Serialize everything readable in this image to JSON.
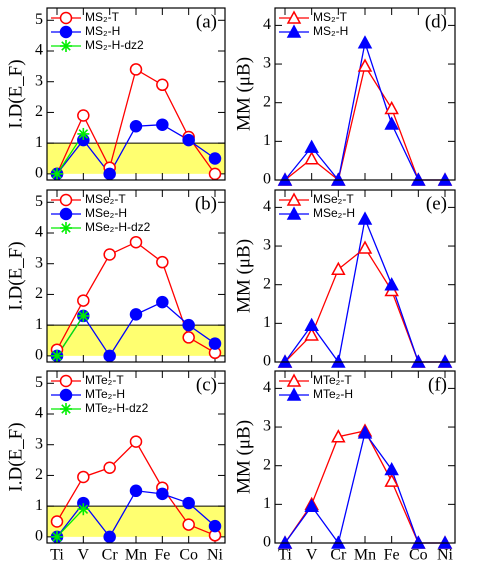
{
  "chart_data": [
    {
      "type": "line",
      "label": "(a)",
      "ylabel": "I.D(E_F)",
      "ylim": [
        -0.2,
        5.4
      ],
      "yticks": [
        0,
        1,
        2,
        3,
        4,
        5
      ],
      "band": [
        0,
        1
      ],
      "band_color": "#ffff70",
      "legend": "upper left",
      "series": [
        {
          "name": "MS₂-T",
          "color": "#ff0000",
          "marker": "open-circle",
          "values": [
            0,
            1.9,
            0.2,
            3.4,
            2.9,
            1.2,
            0
          ]
        },
        {
          "name": "MS₂-H",
          "color": "#0000ff",
          "marker": "filled-circle",
          "values": [
            0,
            1.1,
            0,
            1.55,
            1.6,
            1.1,
            0.5
          ]
        },
        {
          "name": "MS₂-H-dz2",
          "color": "#00ee00",
          "marker": "asterisk",
          "values": [
            0,
            1.3,
            null,
            null,
            null,
            null,
            null
          ]
        }
      ]
    },
    {
      "type": "line",
      "label": "(b)",
      "ylabel": "I.D(E_F)",
      "ylim": [
        -0.2,
        5.4
      ],
      "yticks": [
        0,
        1,
        2,
        3,
        4,
        5
      ],
      "band": [
        0,
        1
      ],
      "band_color": "#ffff70",
      "legend": "upper left",
      "series": [
        {
          "name": "MSe₂-T",
          "color": "#ff0000",
          "marker": "open-circle",
          "values": [
            0.2,
            1.8,
            3.3,
            3.7,
            3.05,
            0.6,
            0.1
          ]
        },
        {
          "name": "MSe₂-H",
          "color": "#0000ff",
          "marker": "filled-circle",
          "values": [
            0,
            1.3,
            0,
            1.35,
            1.75,
            1.0,
            0.4
          ]
        },
        {
          "name": "MSe₂-H-dz2",
          "color": "#00ee00",
          "marker": "asterisk",
          "values": [
            0,
            1.3,
            null,
            null,
            null,
            null,
            null
          ]
        }
      ]
    },
    {
      "type": "line",
      "label": "(c)",
      "ylabel": "I.D(E_F)",
      "ylim": [
        -0.2,
        5.4
      ],
      "yticks": [
        0,
        1,
        2,
        3,
        4,
        5
      ],
      "band": [
        0,
        1
      ],
      "band_color": "#ffff70",
      "legend": "upper left",
      "categories": [
        "Ti",
        "V",
        "Cr",
        "Mn",
        "Fe",
        "Co",
        "Ni"
      ],
      "series": [
        {
          "name": "MTe₂-T",
          "color": "#ff0000",
          "marker": "open-circle",
          "values": [
            0.5,
            1.95,
            2.25,
            3.1,
            1.6,
            0.4,
            0.05
          ]
        },
        {
          "name": "MTe₂-H",
          "color": "#0000ff",
          "marker": "filled-circle",
          "values": [
            0,
            1.1,
            0,
            1.5,
            1.4,
            1.1,
            0.35
          ]
        },
        {
          "name": "MTe₂-H-dz2",
          "color": "#00ee00",
          "marker": "asterisk",
          "values": [
            0,
            0.9,
            null,
            null,
            null,
            null,
            null
          ]
        }
      ]
    },
    {
      "type": "line",
      "label": "(d)",
      "ylabel": "MM (μB)",
      "ylim": [
        0,
        4.45
      ],
      "yticks": [
        0,
        1,
        2,
        3,
        4
      ],
      "legend": "upper left",
      "series": [
        {
          "name": "MS₂-T",
          "color": "#ff0000",
          "marker": "open-triangle",
          "values": [
            0,
            0.55,
            0,
            2.95,
            1.85,
            0,
            0
          ]
        },
        {
          "name": "MS₂-H",
          "color": "#0000ff",
          "marker": "filled-triangle",
          "values": [
            0,
            0.85,
            0,
            3.55,
            1.45,
            0,
            0
          ]
        }
      ]
    },
    {
      "type": "line",
      "label": "(e)",
      "ylabel": "MM (μB)",
      "ylim": [
        0,
        4.45
      ],
      "yticks": [
        0,
        1,
        2,
        3,
        4
      ],
      "legend": "upper left",
      "series": [
        {
          "name": "MSe₂-T",
          "color": "#ff0000",
          "marker": "open-triangle",
          "values": [
            0,
            0.7,
            2.4,
            2.95,
            1.85,
            0,
            0
          ]
        },
        {
          "name": "MSe₂-H",
          "color": "#0000ff",
          "marker": "filled-triangle",
          "values": [
            0,
            0.95,
            0,
            3.7,
            2.0,
            0,
            0
          ]
        }
      ]
    },
    {
      "type": "line",
      "label": "(f)",
      "ylabel": "MM (μB)",
      "ylim": [
        0,
        4.45
      ],
      "yticks": [
        0,
        1,
        2,
        3,
        4
      ],
      "legend": "upper left",
      "categories": [
        "Ti",
        "V",
        "Cr",
        "Mn",
        "Fe",
        "Co",
        "Ni"
      ],
      "series": [
        {
          "name": "MTe₂-T",
          "color": "#ff0000",
          "marker": "open-triangle",
          "values": [
            0,
            1.0,
            2.75,
            2.9,
            1.6,
            0,
            0
          ]
        },
        {
          "name": "MTe₂-H",
          "color": "#0000ff",
          "marker": "filled-triangle",
          "values": [
            0,
            0.95,
            0,
            2.85,
            1.9,
            0,
            0
          ]
        }
      ]
    }
  ]
}
